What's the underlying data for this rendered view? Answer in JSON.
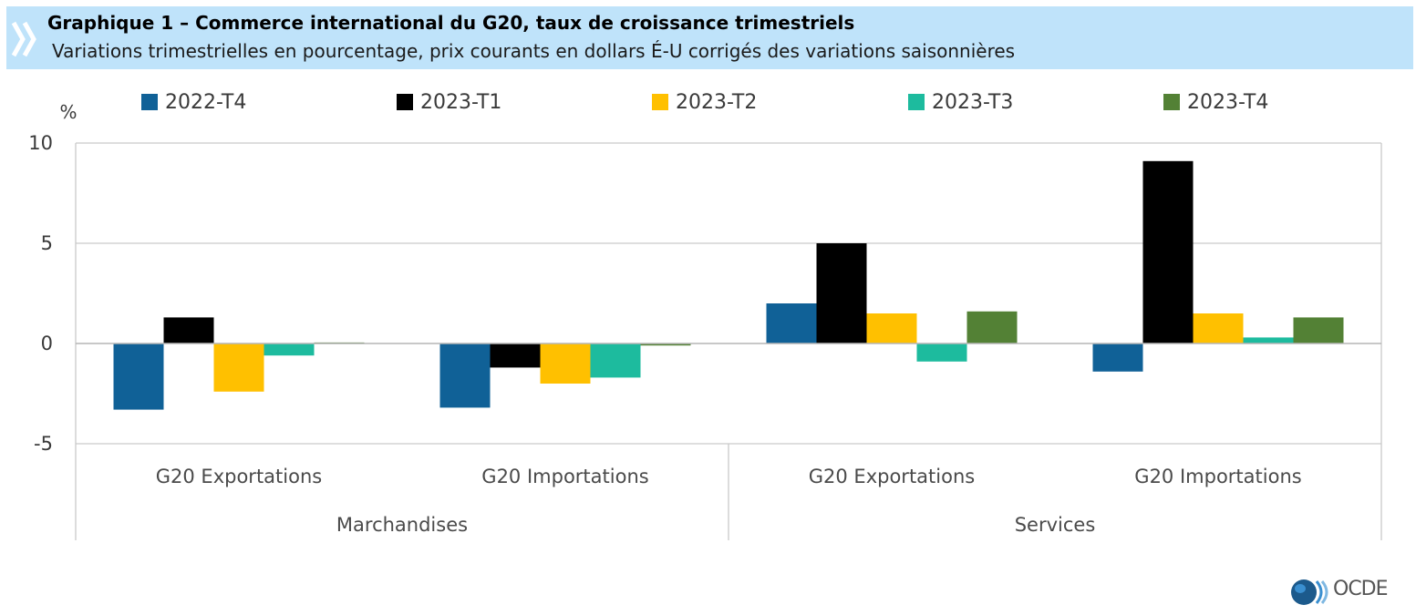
{
  "header": {
    "title": "Graphique 1 – Commerce international du G20, taux de croissance trimestriels",
    "subtitle": "Variations trimestrielles en pourcentage, prix courants en dollars É-U corrigés des variations saisonnières"
  },
  "logo": {
    "text": "OCDE",
    "icon": "oecd-globe-icon"
  },
  "chart_data": {
    "type": "bar",
    "title": "Graphique 1 – Commerce international du G20, taux de croissance trimestriels",
    "subtitle": "Variations trimestrielles en pourcentage, prix courants en dollars É-U corrigés des variations saisonnières",
    "ylabel": "%",
    "ylim": [
      -5,
      10
    ],
    "yticks": [
      -5,
      0,
      5,
      10
    ],
    "grid": true,
    "legend_position": "top",
    "categories": [
      "G20 Exportations",
      "G20 Importations",
      "G20 Exportations",
      "G20 Importations"
    ],
    "groups": [
      {
        "label": "Marchandises",
        "span": [
          0,
          1
        ]
      },
      {
        "label": "Services",
        "span": [
          2,
          3
        ]
      }
    ],
    "series": [
      {
        "name": "2022-T4",
        "color": "#106197",
        "values": [
          -3.3,
          -3.2,
          2.0,
          -1.4
        ]
      },
      {
        "name": "2023-T1",
        "color": "#000000",
        "values": [
          1.3,
          -1.2,
          5.0,
          9.1
        ]
      },
      {
        "name": "2023-T2",
        "color": "#ffc000",
        "values": [
          -2.4,
          -2.0,
          1.5,
          1.5
        ]
      },
      {
        "name": "2023-T3",
        "color": "#1dbb9e",
        "values": [
          -0.6,
          -1.7,
          -0.9,
          0.3
        ]
      },
      {
        "name": "2023-T4",
        "color": "#538135",
        "values": [
          0.05,
          -0.1,
          1.6,
          1.3
        ]
      }
    ]
  }
}
